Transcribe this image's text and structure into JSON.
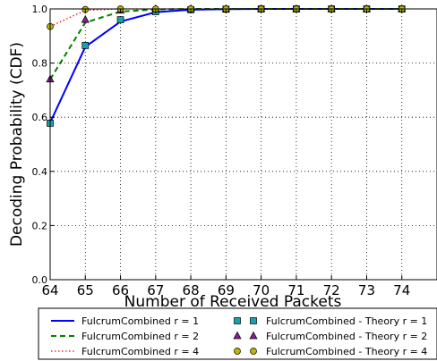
{
  "chart_data": {
    "type": "line",
    "title": "",
    "xlabel": "Number of Received Packets",
    "ylabel": "Decoding Probability (CDF)",
    "xlim": [
      64,
      75
    ],
    "ylim": [
      0.0,
      1.0
    ],
    "x_ticks": [
      64,
      65,
      66,
      67,
      68,
      69,
      70,
      71,
      72,
      73,
      74
    ],
    "y_ticks": [
      0.0,
      0.2,
      0.4,
      0.6,
      0.8,
      1.0
    ],
    "x_tick_labels": [
      "64",
      "65",
      "66",
      "67",
      "68",
      "69",
      "70",
      "71",
      "72",
      "73",
      "74"
    ],
    "y_tick_labels": [
      "0.0",
      "0.2",
      "0.4",
      "0.6",
      "0.8",
      "1.0"
    ],
    "grid": true,
    "legend_position": "bottom",
    "x": [
      64,
      65,
      66,
      67,
      68,
      69,
      70,
      71,
      72,
      73,
      74
    ],
    "series": [
      {
        "name": "FulcrumCombined r = 1",
        "kind": "line",
        "style": "solid",
        "color": "#0000ff",
        "values": [
          0.58,
          0.86,
          0.953,
          0.988,
          0.997,
          0.999,
          1.0,
          1.0,
          1.0,
          1.0,
          1.0
        ]
      },
      {
        "name": "FulcrumCombined r = 2",
        "kind": "line",
        "style": "dashed",
        "color": "#008000",
        "values": [
          0.74,
          0.95,
          0.99,
          0.998,
          1.0,
          1.0,
          1.0,
          1.0,
          1.0,
          1.0,
          1.0
        ]
      },
      {
        "name": "FulcrumCombined r = 4",
        "kind": "line",
        "style": "dotted",
        "color": "#ff0000",
        "values": [
          0.935,
          0.995,
          1.0,
          1.0,
          1.0,
          1.0,
          1.0,
          1.0,
          1.0,
          1.0,
          1.0
        ]
      },
      {
        "name": "FulcrumCombined - Theory r = 1",
        "kind": "markers",
        "marker": "square",
        "color": "#17a2b0",
        "values": [
          0.578,
          0.865,
          0.96,
          0.99,
          0.997,
          0.999,
          1.0,
          1.0,
          1.0,
          1.0,
          1.0
        ]
      },
      {
        "name": "FulcrumCombined - Theory r = 2",
        "kind": "markers",
        "marker": "triangle",
        "color": "#8b1c8b",
        "values": [
          0.74,
          0.96,
          0.994,
          0.999,
          1.0,
          1.0,
          1.0,
          1.0,
          1.0,
          1.0,
          1.0
        ]
      },
      {
        "name": "FulcrumCombined - Theory r = 4",
        "kind": "markers",
        "marker": "circle",
        "color": "#b8b800",
        "values": [
          0.935,
          0.998,
          1.0,
          1.0,
          1.0,
          1.0,
          1.0,
          1.0,
          1.0,
          1.0,
          1.0
        ]
      }
    ]
  }
}
